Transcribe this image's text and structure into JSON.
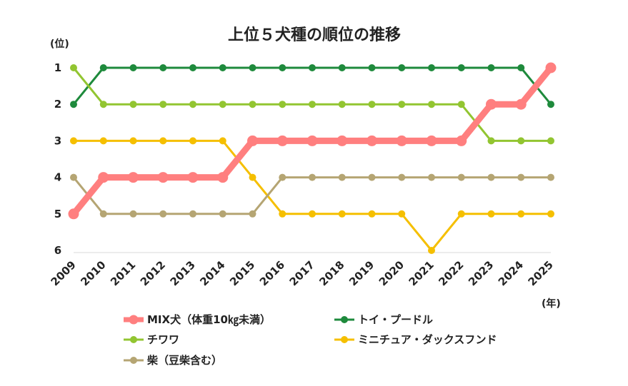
{
  "chart_data": {
    "type": "line",
    "title": "上位５犬種の順位の推移",
    "y_unit": "(位)",
    "x_unit": "(年)",
    "x": [
      "2009",
      "2010",
      "2011",
      "2012",
      "2013",
      "2014",
      "2015",
      "2016",
      "2017",
      "2018",
      "2019",
      "2020",
      "2021",
      "2022",
      "2023",
      "2024",
      "2025"
    ],
    "y_ticks": [
      "1",
      "2",
      "3",
      "4",
      "5",
      "6"
    ],
    "ylim": [
      1,
      6
    ],
    "y_inverted": true,
    "grid": false,
    "legend_position": "bottom",
    "series": [
      {
        "name": "MIX犬（体重10㎏未満）",
        "color": "#ff7f7f",
        "thick": true,
        "values": [
          5,
          4,
          4,
          4,
          4,
          4,
          3,
          3,
          3,
          3,
          3,
          3,
          3,
          3,
          2,
          2,
          1
        ]
      },
      {
        "name": "トイ・プードル",
        "color": "#1e8a3c",
        "thick": false,
        "values": [
          2,
          1,
          1,
          1,
          1,
          1,
          1,
          1,
          1,
          1,
          1,
          1,
          1,
          1,
          1,
          1,
          2
        ]
      },
      {
        "name": "チワワ",
        "color": "#92c531",
        "thick": false,
        "values": [
          1,
          2,
          2,
          2,
          2,
          2,
          2,
          2,
          2,
          2,
          2,
          2,
          2,
          2,
          3,
          3,
          3
        ]
      },
      {
        "name": "ミニチュア・ダックスフンド",
        "color": "#f5bf00",
        "thick": false,
        "values": [
          3,
          3,
          3,
          3,
          3,
          3,
          4,
          5,
          5,
          5,
          5,
          5,
          6,
          5,
          5,
          5,
          5
        ]
      },
      {
        "name": "柴（豆柴含む）",
        "color": "#b5a573",
        "thick": false,
        "values": [
          4,
          5,
          5,
          5,
          5,
          5,
          5,
          4,
          4,
          4,
          4,
          4,
          4,
          4,
          4,
          4,
          4
        ]
      }
    ]
  }
}
